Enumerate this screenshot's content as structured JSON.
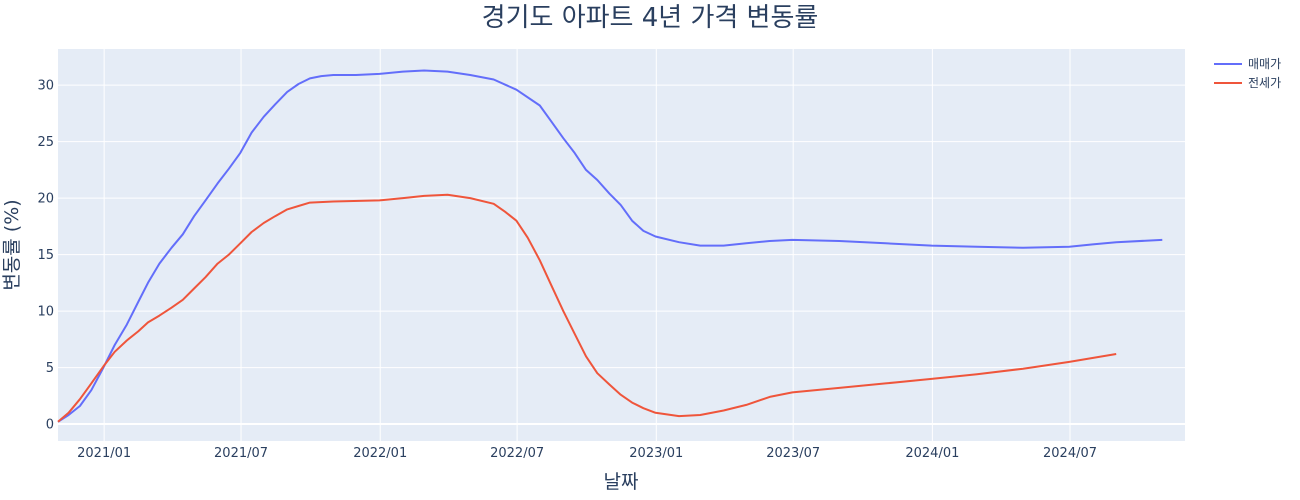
{
  "chart_data": {
    "type": "line",
    "title": "경기도 아파트 4년 가격 변동률",
    "xlabel": "날짜",
    "ylabel": "변동률 (%)",
    "xlim": [
      "2020-11-01",
      "2024-11-30"
    ],
    "ylim": [
      -1.5,
      33.2
    ],
    "x_ticks": [
      {
        "date": "2021-01-01",
        "label": "2021/01"
      },
      {
        "date": "2021-07-01",
        "label": "2021/07"
      },
      {
        "date": "2022-01-01",
        "label": "2022/01"
      },
      {
        "date": "2022-07-01",
        "label": "2022/07"
      },
      {
        "date": "2023-01-01",
        "label": "2023/01"
      },
      {
        "date": "2023-07-01",
        "label": "2023/07"
      },
      {
        "date": "2024-01-01",
        "label": "2024/01"
      },
      {
        "date": "2024-07-01",
        "label": "2024/07"
      }
    ],
    "y_ticks": [
      0,
      5,
      10,
      15,
      20,
      25,
      30
    ],
    "grid": true,
    "legend_position": "top-right",
    "plot_background": "#e5ecf6",
    "series": [
      {
        "name": "매매가",
        "color": "#636efa",
        "points": [
          [
            "2020-11-01",
            0.2
          ],
          [
            "2020-11-15",
            0.8
          ],
          [
            "2020-11-30",
            1.6
          ],
          [
            "2020-12-15",
            3.0
          ],
          [
            "2020-12-31",
            5.0
          ],
          [
            "2021-01-15",
            7.0
          ],
          [
            "2021-01-31",
            8.8
          ],
          [
            "2021-02-15",
            10.8
          ],
          [
            "2021-02-28",
            12.5
          ],
          [
            "2021-03-15",
            14.2
          ],
          [
            "2021-03-31",
            15.6
          ],
          [
            "2021-04-15",
            16.8
          ],
          [
            "2021-04-30",
            18.4
          ],
          [
            "2021-05-15",
            19.8
          ],
          [
            "2021-05-31",
            21.3
          ],
          [
            "2021-06-15",
            22.6
          ],
          [
            "2021-06-30",
            24.0
          ],
          [
            "2021-07-15",
            25.8
          ],
          [
            "2021-07-31",
            27.2
          ],
          [
            "2021-08-15",
            28.3
          ],
          [
            "2021-08-31",
            29.4
          ],
          [
            "2021-09-15",
            30.1
          ],
          [
            "2021-09-30",
            30.6
          ],
          [
            "2021-10-15",
            30.8
          ],
          [
            "2021-10-31",
            30.9
          ],
          [
            "2021-11-30",
            30.9
          ],
          [
            "2021-12-31",
            31.0
          ],
          [
            "2022-01-31",
            31.2
          ],
          [
            "2022-02-28",
            31.3
          ],
          [
            "2022-03-31",
            31.2
          ],
          [
            "2022-04-30",
            30.9
          ],
          [
            "2022-05-31",
            30.5
          ],
          [
            "2022-06-30",
            29.6
          ],
          [
            "2022-07-31",
            28.2
          ],
          [
            "2022-08-15",
            26.8
          ],
          [
            "2022-08-31",
            25.3
          ],
          [
            "2022-09-15",
            24.0
          ],
          [
            "2022-09-30",
            22.5
          ],
          [
            "2022-10-15",
            21.6
          ],
          [
            "2022-10-31",
            20.4
          ],
          [
            "2022-11-15",
            19.4
          ],
          [
            "2022-11-30",
            18.0
          ],
          [
            "2022-12-15",
            17.1
          ],
          [
            "2022-12-31",
            16.6
          ],
          [
            "2023-01-31",
            16.1
          ],
          [
            "2023-02-28",
            15.8
          ],
          [
            "2023-03-31",
            15.8
          ],
          [
            "2023-04-30",
            16.0
          ],
          [
            "2023-05-31",
            16.2
          ],
          [
            "2023-06-30",
            16.3
          ],
          [
            "2023-08-31",
            16.2
          ],
          [
            "2023-10-31",
            16.0
          ],
          [
            "2023-12-31",
            15.8
          ],
          [
            "2024-02-29",
            15.7
          ],
          [
            "2024-04-30",
            15.6
          ],
          [
            "2024-06-30",
            15.7
          ],
          [
            "2024-07-31",
            15.9
          ],
          [
            "2024-08-31",
            16.1
          ],
          [
            "2024-10-31",
            16.3
          ]
        ]
      },
      {
        "name": "전세가",
        "color": "#ef553b",
        "points": [
          [
            "2020-11-01",
            0.2
          ],
          [
            "2020-11-15",
            1.0
          ],
          [
            "2020-11-30",
            2.2
          ],
          [
            "2020-12-15",
            3.6
          ],
          [
            "2020-12-31",
            5.1
          ],
          [
            "2021-01-15",
            6.4
          ],
          [
            "2021-01-31",
            7.4
          ],
          [
            "2021-02-15",
            8.2
          ],
          [
            "2021-02-28",
            9.0
          ],
          [
            "2021-03-15",
            9.6
          ],
          [
            "2021-03-31",
            10.3
          ],
          [
            "2021-04-15",
            11.0
          ],
          [
            "2021-04-30",
            12.0
          ],
          [
            "2021-05-15",
            13.0
          ],
          [
            "2021-05-31",
            14.2
          ],
          [
            "2021-06-15",
            15.0
          ],
          [
            "2021-06-30",
            16.0
          ],
          [
            "2021-07-15",
            17.0
          ],
          [
            "2021-07-31",
            17.8
          ],
          [
            "2021-08-15",
            18.4
          ],
          [
            "2021-08-31",
            19.0
          ],
          [
            "2021-09-15",
            19.3
          ],
          [
            "2021-09-30",
            19.6
          ],
          [
            "2021-10-31",
            19.7
          ],
          [
            "2021-12-31",
            19.8
          ],
          [
            "2022-01-31",
            20.0
          ],
          [
            "2022-02-28",
            20.2
          ],
          [
            "2022-03-31",
            20.3
          ],
          [
            "2022-04-30",
            20.0
          ],
          [
            "2022-05-31",
            19.5
          ],
          [
            "2022-06-15",
            18.8
          ],
          [
            "2022-06-30",
            18.0
          ],
          [
            "2022-07-15",
            16.5
          ],
          [
            "2022-07-31",
            14.5
          ],
          [
            "2022-08-15",
            12.3
          ],
          [
            "2022-08-31",
            10.0
          ],
          [
            "2022-09-15",
            8.0
          ],
          [
            "2022-09-30",
            6.0
          ],
          [
            "2022-10-15",
            4.5
          ],
          [
            "2022-10-31",
            3.5
          ],
          [
            "2022-11-15",
            2.6
          ],
          [
            "2022-11-30",
            1.9
          ],
          [
            "2022-12-15",
            1.4
          ],
          [
            "2022-12-31",
            1.0
          ],
          [
            "2023-01-31",
            0.7
          ],
          [
            "2023-02-28",
            0.8
          ],
          [
            "2023-03-31",
            1.2
          ],
          [
            "2023-04-30",
            1.7
          ],
          [
            "2023-05-31",
            2.4
          ],
          [
            "2023-06-30",
            2.8
          ],
          [
            "2023-08-31",
            3.2
          ],
          [
            "2023-10-31",
            3.6
          ],
          [
            "2023-12-31",
            4.0
          ],
          [
            "2024-02-29",
            4.4
          ],
          [
            "2024-04-30",
            4.9
          ],
          [
            "2024-06-30",
            5.5
          ],
          [
            "2024-08-31",
            6.2
          ]
        ]
      }
    ]
  }
}
